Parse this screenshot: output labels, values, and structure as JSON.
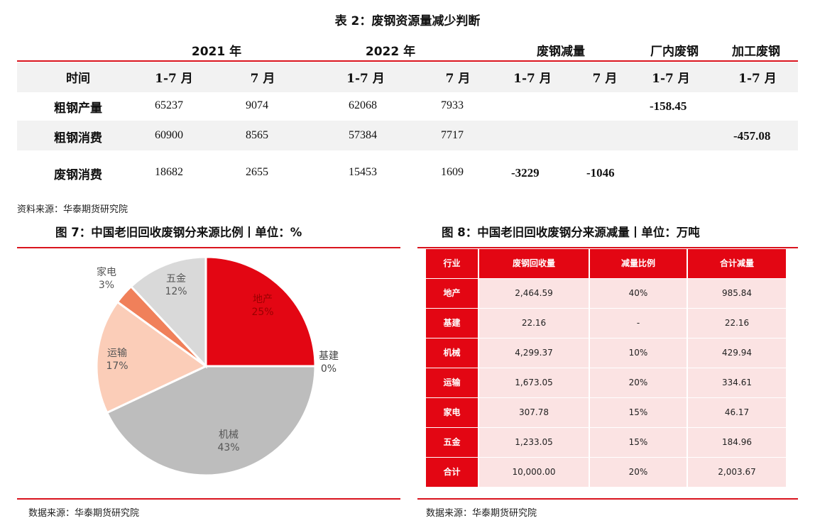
{
  "table2": {
    "title": "表 2：废钢资源量减少判断",
    "groups": [
      "2021 年",
      "2022 年",
      "废钢减量",
      "厂内废钢",
      "加工废钢"
    ],
    "headers": [
      "时间",
      "1-7 月",
      "7 月",
      "1-7 月",
      "7 月",
      "1-7 月",
      "7 月",
      "1-7 月",
      "1-7 月"
    ],
    "rows": [
      {
        "label": "粗钢产量",
        "c2021a": "65237",
        "c2021b": "9074",
        "c2022a": "62068",
        "c2022b": "7933",
        "reduce_a": "",
        "reduce_b": "",
        "plant": "-158.45",
        "process": ""
      },
      {
        "label": "粗钢消费",
        "c2021a": "60900",
        "c2021b": "8565",
        "c2022a": "57384",
        "c2022b": "7717",
        "reduce_a": "",
        "reduce_b": "",
        "plant": "",
        "process": "-457.08"
      },
      {
        "label": "废钢消费",
        "c2021a": "18682",
        "c2021b": "2655",
        "c2022a": "15453",
        "c2022b": "1609",
        "reduce_a": "-3229",
        "reduce_b": "-1046",
        "plant": "",
        "process": ""
      }
    ],
    "source": "资料来源：华泰期货研究院"
  },
  "fig7": {
    "title": "图 7：中国老旧回收废钢分来源比例丨单位：%",
    "source": "数据来源：华泰期货研究院",
    "chart_data": {
      "type": "pie",
      "slices": [
        {
          "name": "地产",
          "value": 25,
          "label": "25%",
          "color": "#e30613"
        },
        {
          "name": "基建",
          "value": 0,
          "label": "0%",
          "color": "#f2b8b8"
        },
        {
          "name": "机械",
          "value": 43,
          "label": "43%",
          "color": "#bdbdbd"
        },
        {
          "name": "运输",
          "value": 17,
          "label": "17%",
          "color": "#fbcdb8"
        },
        {
          "name": "家电",
          "value": 3,
          "label": "3%",
          "color": "#f0805a"
        },
        {
          "name": "五金",
          "value": 12,
          "label": "12%",
          "color": "#d9d9d9"
        }
      ]
    }
  },
  "fig8": {
    "title": "图 8：中国老旧回收废钢分来源减量丨单位：万吨",
    "source": "数据来源：华泰期货研究院",
    "headers": [
      "行业",
      "废钢回收量",
      "减量比例",
      "合计减量"
    ],
    "rows": [
      {
        "industry": "地产",
        "recovery": "2,464.59",
        "ratio": "40%",
        "total": "985.84"
      },
      {
        "industry": "基建",
        "recovery": "22.16",
        "ratio": "-",
        "total": "22.16"
      },
      {
        "industry": "机械",
        "recovery": "4,299.37",
        "ratio": "10%",
        "total": "429.94"
      },
      {
        "industry": "运输",
        "recovery": "1,673.05",
        "ratio": "20%",
        "total": "334.61"
      },
      {
        "industry": "家电",
        "recovery": "307.78",
        "ratio": "15%",
        "total": "46.17"
      },
      {
        "industry": "五金",
        "recovery": "1,233.05",
        "ratio": "15%",
        "total": "184.96"
      },
      {
        "industry": "合计",
        "recovery": "10,000.00",
        "ratio": "20%",
        "total": "2,003.67"
      }
    ]
  }
}
